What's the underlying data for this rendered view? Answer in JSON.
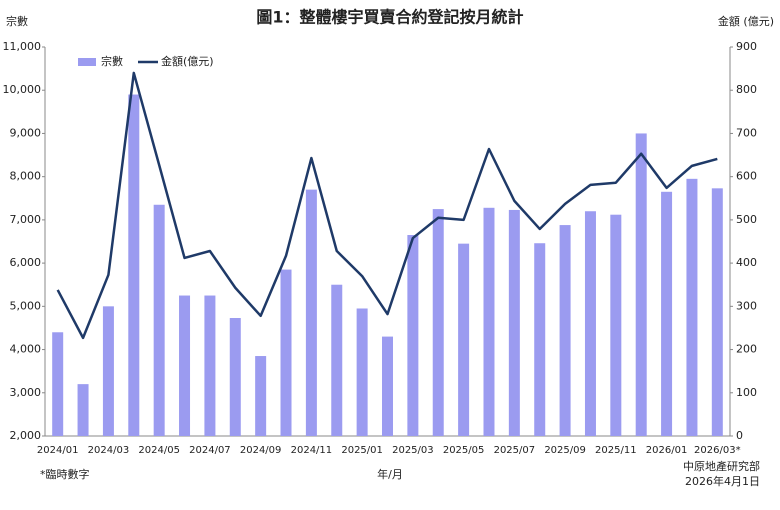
{
  "chart_data": {
    "type": "bar-line",
    "title": "圖1：整體樓宇買賣合約登記按月統計",
    "y_label": "宗數",
    "y2_label": "金額 (億元)",
    "x_label": "年/月",
    "footnote": "*臨時數字",
    "source": "中原地產研究部",
    "date": "2026年4月1日",
    "categories": [
      "2024/01",
      null,
      "2024/03",
      null,
      "2024/05",
      null,
      "2024/07",
      null,
      "2024/09",
      null,
      "2024/11",
      null,
      "2025/01",
      null,
      "2025/03",
      null,
      "2025/05",
      null,
      "2025/07",
      null,
      "2025/09",
      null,
      "2025/11",
      null,
      "2026/01",
      null,
      "2026/03*"
    ],
    "series": [
      {
        "name": "宗數",
        "color": "#9b9bf0",
        "kind": "bar",
        "axis": "y",
        "values": [
          4400,
          3200,
          5000,
          9900,
          7350,
          5250,
          5250,
          4730,
          3850,
          5850,
          7700,
          5500,
          4950,
          4300,
          6650,
          7250,
          6450,
          7280,
          7230,
          6460,
          6880,
          7200,
          7120,
          9000,
          7650,
          7950,
          7730
        ]
      },
      {
        "name": "金額(億元)",
        "color": "#1f3a68",
        "kind": "line",
        "axis": "y2",
        "values": [
          338,
          227,
          373,
          840,
          627,
          412,
          428,
          343,
          278,
          417,
          643,
          428,
          370,
          282,
          458,
          505,
          500,
          664,
          544,
          479,
          537,
          581,
          586,
          653,
          574,
          625,
          641
        ]
      }
    ],
    "ylim": [
      2000,
      11000
    ],
    "yticks": [
      {
        "value": 2000,
        "label": "2,000"
      },
      {
        "value": 3000,
        "label": "3,000"
      },
      {
        "value": 4000,
        "label": "4,000"
      },
      {
        "value": 5000,
        "label": "5,000"
      },
      {
        "value": 6000,
        "label": "6,000"
      },
      {
        "value": 7000,
        "label": "7,000"
      },
      {
        "value": 8000,
        "label": "8,000"
      },
      {
        "value": 9000,
        "label": "9,000"
      },
      {
        "value": 10000,
        "label": "10,000"
      },
      {
        "value": 11000,
        "label": "11,000"
      }
    ],
    "y2lim": [
      0,
      900
    ],
    "y2ticks": [
      0,
      100,
      200,
      300,
      400,
      500,
      600,
      700,
      800,
      900
    ],
    "grid": false,
    "legend": "upper left"
  }
}
